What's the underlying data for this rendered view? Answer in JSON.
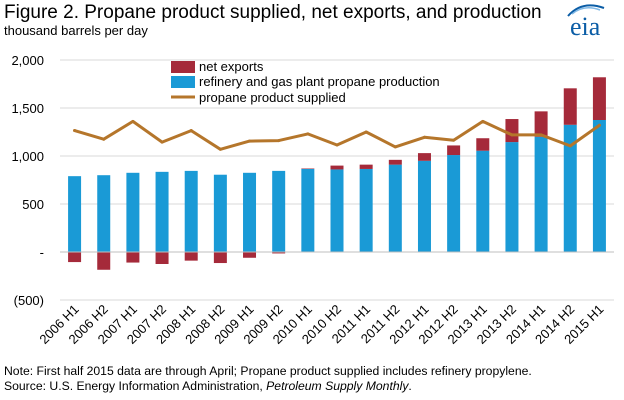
{
  "header": {
    "title": "Figure 2. Propane product supplied, net exports, and production",
    "subtitle": "thousand barrels per day"
  },
  "logo": {
    "text": "eia"
  },
  "footer": {
    "note": "Note: First half 2015 data are through April; Propane product supplied includes refinery propylene.",
    "source_prefix": "Source: U.S. Energy Information Administration, ",
    "source_publication": "Petroleum Supply Monthly",
    "source_suffix": "."
  },
  "colors": {
    "net_exports": "#a52a3a",
    "production": "#1a9ad6",
    "supplied": "#b5762b",
    "grid": "#d9d9d9",
    "axis": "#000000",
    "logo_accent": "#0b5da6"
  },
  "chart_data": {
    "type": "bar",
    "title": "Figure 2. Propane product supplied, net exports, and production",
    "ylabel": "thousand barrels per day",
    "ylim": [
      -500,
      2000
    ],
    "yticks": [
      -500,
      0,
      500,
      1000,
      1500,
      2000
    ],
    "ytick_labels": [
      "(500)",
      "-",
      "500",
      "1,000",
      "1,500",
      "2,000"
    ],
    "grid": true,
    "legend_position": "top-left",
    "categories": [
      "2006 H1",
      "2006 H2",
      "2007 H1",
      "2007 H2",
      "2008 H1",
      "2008 H2",
      "2009 H1",
      "2009 H2",
      "2010 H1",
      "2010 H2",
      "2011 H1",
      "2011 H2",
      "2012 H1",
      "2012 H2",
      "2013 H1",
      "2013 H2",
      "2014 H1",
      "2014 H2",
      "2015 H1"
    ],
    "series": [
      {
        "name": "net exports",
        "kind": "stacked-bar",
        "values": [
          -105,
          -185,
          -110,
          -125,
          -90,
          -115,
          -60,
          -15,
          5,
          40,
          45,
          50,
          80,
          100,
          130,
          240,
          265,
          380,
          445
        ]
      },
      {
        "name": "refinery and gas plant propane production",
        "kind": "bar",
        "values": [
          790,
          800,
          825,
          835,
          845,
          805,
          825,
          845,
          865,
          860,
          865,
          910,
          950,
          1010,
          1055,
          1145,
          1200,
          1325,
          1375
        ]
      },
      {
        "name": "propane product supplied",
        "kind": "line",
        "values": [
          1265,
          1175,
          1360,
          1145,
          1265,
          1070,
          1155,
          1160,
          1230,
          1115,
          1250,
          1095,
          1195,
          1165,
          1360,
          1220,
          1220,
          1105,
          1320
        ]
      }
    ]
  }
}
